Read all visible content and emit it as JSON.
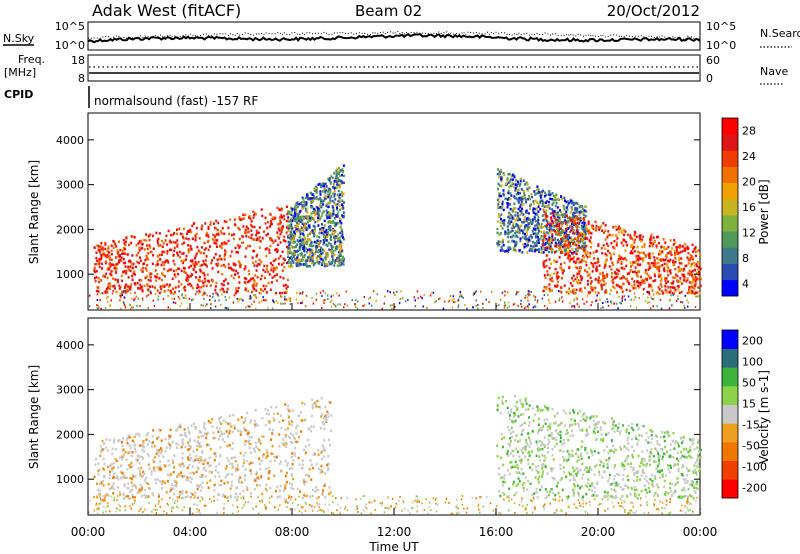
{
  "header": {
    "station": "Adak West (fitACF)",
    "beam": "Beam 02",
    "date": "20/Oct/2012"
  },
  "top_panels": {
    "nsky_label": "N.Sky",
    "nsky_ticks": [
      "10^5",
      "10^0"
    ],
    "nsearch_label": "N.Search",
    "nsearch_ticks": [
      "10^5",
      "10^0"
    ],
    "freq_label": "Freq.",
    "freq_unit": "[MHz]",
    "freq_ticks": [
      "18",
      "8"
    ],
    "nave_label": "Nave",
    "nave_ticks": [
      "60",
      "0"
    ],
    "cpid_label": "CPID",
    "cpid_text": "normalsound (fast) -157 RF"
  },
  "chart_data": [
    {
      "type": "heatmap",
      "name": "power",
      "ylabel": "Slant Range [km]",
      "ylim": [
        200,
        4600
      ],
      "yticks": [
        "1000",
        "2000",
        "3000",
        "4000"
      ],
      "colorbar_label": "Power [dB]",
      "colorbar_ticks": [
        "28",
        "24",
        "20",
        "16",
        "12",
        "8",
        "4"
      ],
      "colors": [
        "#0000ff",
        "#2a4bb0",
        "#3c7a8c",
        "#4f9a5a",
        "#7fb23c",
        "#c8b41e",
        "#f0a000",
        "#f07000",
        "#f03c00",
        "#e01414",
        "#ff0000"
      ],
      "echo_regions": [
        {
          "t": [
            0.2,
            7.8
          ],
          "range": [
            600,
            2600
          ],
          "dominant": "red-orange"
        },
        {
          "t": [
            7.8,
            10.0
          ],
          "range": [
            1200,
            3500
          ],
          "dominant": "green-blue"
        },
        {
          "t": [
            16.0,
            19.5
          ],
          "range": [
            1500,
            3400
          ],
          "dominant": "blue-green"
        },
        {
          "t": [
            17.8,
            24.0
          ],
          "range": [
            600,
            2500
          ],
          "dominant": "red-orange"
        }
      ]
    },
    {
      "type": "heatmap",
      "name": "velocity",
      "ylabel": "Slant Range [km]",
      "ylim": [
        200,
        4600
      ],
      "yticks": [
        "1000",
        "2000",
        "3000",
        "4000"
      ],
      "xlabel": "Time UT",
      "xticks": [
        "00:00",
        "04:00",
        "08:00",
        "12:00",
        "16:00",
        "20:00",
        "00:00"
      ],
      "colorbar_label": "Velocity [m s-1]",
      "colorbar_ticks": [
        "200",
        "100",
        "50",
        "15",
        "-15",
        "-50",
        "-100",
        "-200"
      ],
      "colors": [
        "#ff0000",
        "#f04000",
        "#f07800",
        "#f0a020",
        "#c8c8c8",
        "#8cd24a",
        "#3cb43c",
        "#2a6e7a",
        "#0000ff"
      ],
      "echo_regions": [
        {
          "t": [
            0.2,
            9.5
          ],
          "range": [
            600,
            2900
          ],
          "dominant": "grey"
        },
        {
          "t": [
            16.0,
            24.0
          ],
          "range": [
            600,
            3000
          ],
          "dominant": "grey-green"
        }
      ]
    }
  ]
}
